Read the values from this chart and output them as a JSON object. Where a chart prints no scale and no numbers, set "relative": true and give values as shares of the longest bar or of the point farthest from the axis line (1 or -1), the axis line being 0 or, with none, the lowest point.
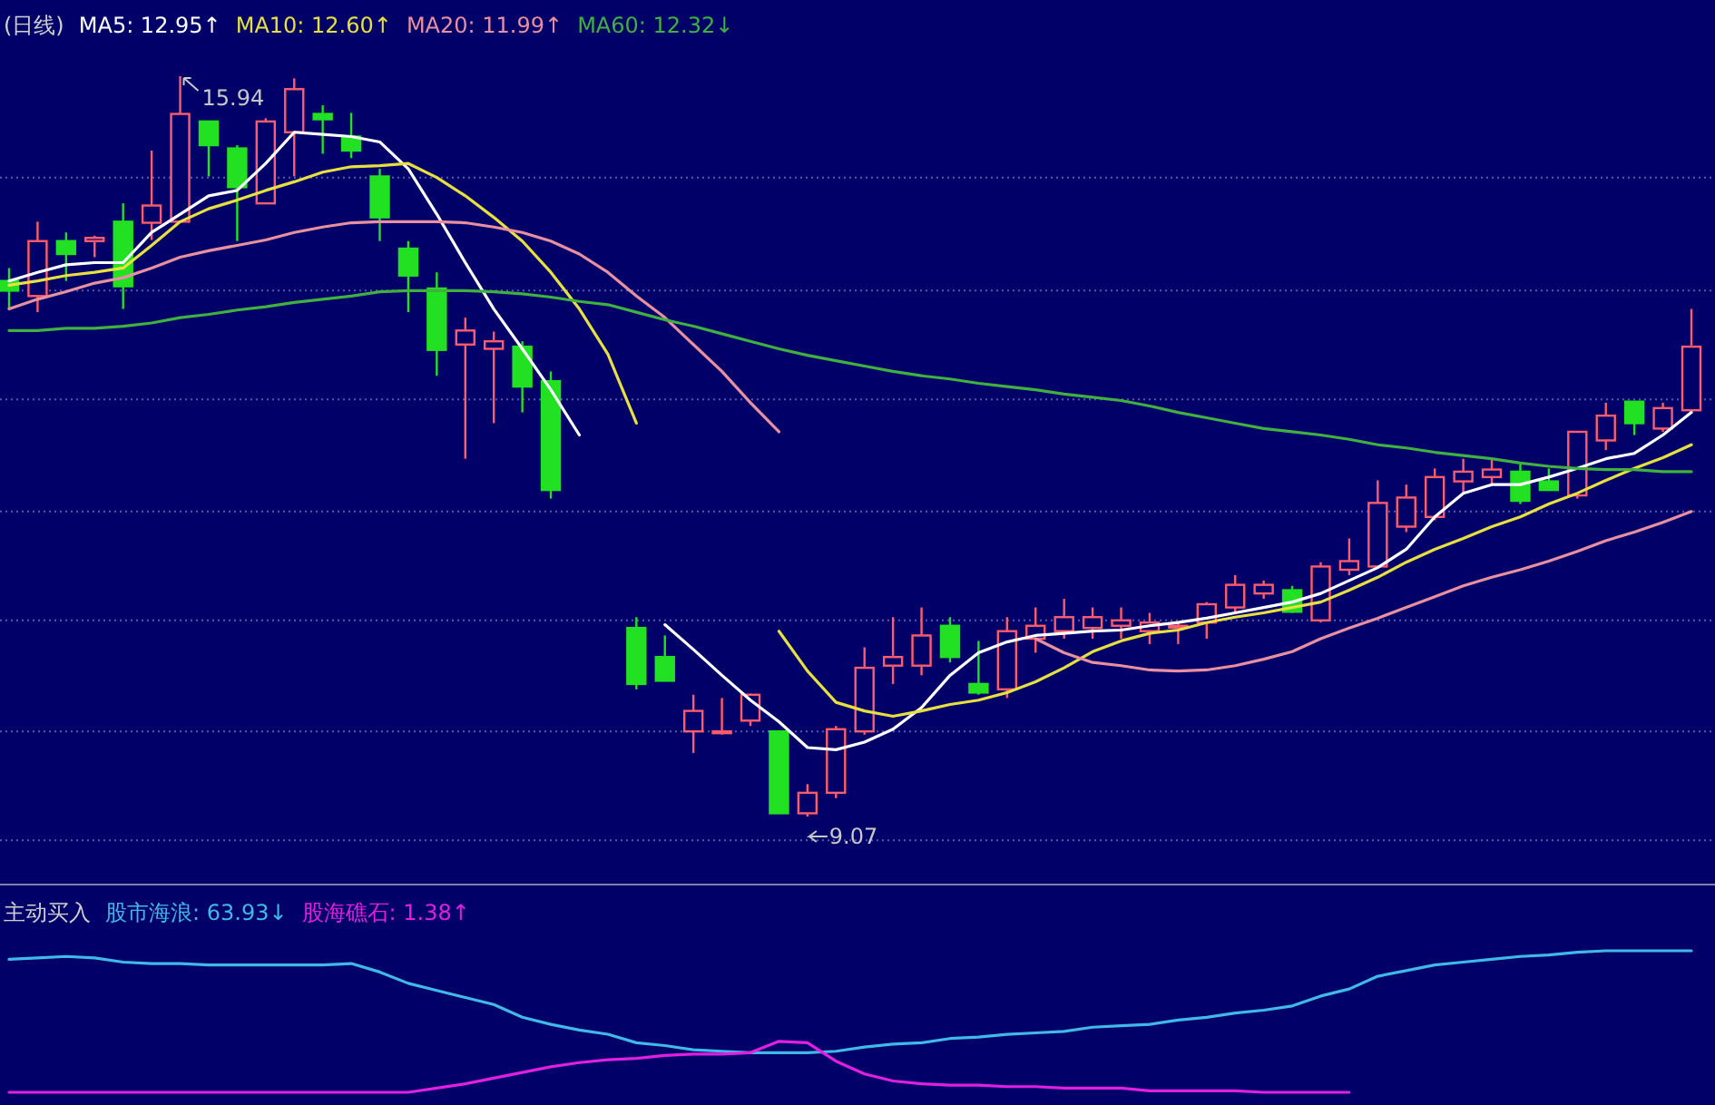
{
  "chart_data": [
    {
      "type": "candlestick",
      "title": "(日线)",
      "grid": "y",
      "legend": "top left",
      "categories": [
        null,
        null,
        null,
        null,
        null,
        null,
        null,
        null,
        null,
        null,
        null,
        null,
        null,
        null,
        null,
        null,
        null,
        null,
        null,
        null,
        null,
        null,
        null,
        null,
        null,
        null,
        null,
        null,
        null,
        null,
        null,
        null,
        null,
        null,
        null,
        null,
        null,
        null,
        null,
        null,
        null,
        null,
        null,
        null,
        null,
        null,
        null,
        null,
        null,
        null,
        null,
        null,
        null,
        null,
        null,
        null,
        null,
        null,
        null,
        null
      ],
      "yticks": [
        {
          "value": 15.0,
          "label": null
        },
        {
          "value": 13.95,
          "label": null
        },
        {
          "value": 12.94,
          "label": null
        },
        {
          "value": 11.9,
          "label": null
        },
        {
          "value": 10.89,
          "label": null
        },
        {
          "value": 9.86,
          "label": null
        },
        {
          "value": 8.85,
          "label": null
        }
      ],
      "ohlc": [
        [
          14.04,
          14.16,
          13.78,
          13.95
        ],
        [
          13.9,
          14.59,
          13.75,
          14.41
        ],
        [
          14.41,
          14.49,
          14.04,
          14.29
        ],
        [
          14.41,
          14.46,
          14.26,
          14.44
        ],
        [
          14.59,
          14.76,
          13.78,
          13.99
        ],
        [
          14.58,
          15.25,
          14.42,
          14.74
        ],
        [
          14.59,
          15.94,
          14.59,
          15.59
        ],
        [
          15.52,
          15.52,
          15.01,
          15.3
        ],
        [
          15.27,
          15.3,
          14.41,
          14.91
        ],
        [
          14.76,
          15.55,
          14.76,
          15.52
        ],
        [
          15.42,
          15.92,
          15.01,
          15.82
        ],
        [
          15.59,
          15.67,
          15.22,
          15.54
        ],
        [
          15.38,
          15.6,
          15.18,
          15.25
        ],
        [
          15.01,
          15.08,
          14.41,
          14.63
        ],
        [
          14.34,
          14.41,
          13.75,
          14.09
        ],
        [
          13.97,
          14.12,
          13.16,
          13.4
        ],
        [
          13.45,
          13.7,
          12.39,
          13.58
        ],
        [
          13.41,
          13.57,
          12.72,
          13.48
        ],
        [
          13.43,
          13.48,
          12.82,
          13.06
        ],
        [
          13.11,
          13.2,
          12.02,
          12.1
        ],
        null,
        null,
        [
          10.82,
          10.92,
          10.25,
          10.3
        ],
        [
          10.55,
          10.75,
          10.33,
          10.33
        ],
        [
          9.86,
          10.2,
          9.66,
          10.05
        ],
        [
          9.86,
          10.17,
          9.83,
          9.86
        ],
        [
          9.96,
          10.21,
          9.91,
          10.2
        ],
        [
          9.86,
          9.86,
          9.1,
          9.1
        ],
        [
          9.1,
          9.37,
          9.07,
          9.29
        ],
        [
          9.29,
          9.91,
          9.24,
          9.88
        ],
        [
          9.86,
          10.64,
          9.83,
          10.45
        ],
        [
          10.47,
          10.92,
          10.3,
          10.55
        ],
        [
          10.47,
          11.01,
          10.38,
          10.75
        ],
        [
          10.84,
          10.92,
          10.5,
          10.55
        ],
        [
          10.3,
          10.7,
          10.2,
          10.22
        ],
        [
          10.25,
          10.92,
          10.17,
          10.79
        ],
        [
          10.72,
          11.01,
          10.59,
          10.84
        ],
        [
          10.79,
          11.09,
          10.72,
          10.92
        ],
        [
          10.82,
          11.01,
          10.72,
          10.92
        ],
        [
          10.84,
          11.01,
          10.72,
          10.89
        ],
        [
          10.79,
          10.96,
          10.67,
          10.87
        ],
        [
          10.84,
          10.87,
          10.67,
          10.84
        ],
        [
          10.87,
          11.06,
          10.72,
          11.04
        ],
        [
          11.01,
          11.31,
          10.97,
          11.22
        ],
        [
          11.14,
          11.26,
          11.09,
          11.22
        ],
        [
          11.17,
          11.21,
          10.96,
          10.97
        ],
        [
          10.89,
          11.43,
          10.87,
          11.39
        ],
        [
          11.36,
          11.65,
          11.31,
          11.44
        ],
        [
          11.39,
          12.19,
          11.38,
          11.98
        ],
        [
          11.76,
          12.15,
          11.71,
          12.03
        ],
        [
          11.85,
          12.3,
          11.82,
          12.22
        ],
        [
          12.18,
          12.39,
          12.07,
          12.27
        ],
        [
          12.22,
          12.39,
          12.15,
          12.29
        ],
        [
          12.27,
          12.34,
          11.97,
          12.0
        ],
        [
          12.18,
          12.3,
          12.1,
          12.1
        ],
        [
          12.05,
          12.64,
          12.02,
          12.64
        ],
        [
          12.56,
          12.91,
          12.47,
          12.79
        ],
        [
          12.92,
          12.92,
          12.61,
          12.72
        ],
        [
          12.67,
          12.91,
          12.64,
          12.86
        ],
        [
          12.84,
          13.78,
          12.81,
          13.43
        ]
      ],
      "series": [
        {
          "name": "MA5: 12.95↑",
          "type": "line",
          "color": "#ffffff",
          "values": [
            14.04,
            14.12,
            14.19,
            14.21,
            14.21,
            14.49,
            14.66,
            14.83,
            14.88,
            15.13,
            15.42,
            15.4,
            15.38,
            15.33,
            15.08,
            14.66,
            14.21,
            13.78,
            13.41,
            13.03,
            12.61,
            null,
            null,
            10.85,
            10.62,
            10.38,
            10.15,
            9.95,
            9.71,
            9.69,
            9.76,
            9.88,
            10.08,
            10.38,
            10.59,
            10.69,
            10.75,
            10.77,
            10.79,
            10.8,
            10.84,
            10.87,
            10.91,
            10.96,
            11.01,
            11.06,
            11.14,
            11.26,
            11.38,
            11.55,
            11.85,
            12.07,
            12.15,
            12.15,
            12.22,
            12.3,
            12.39,
            12.44,
            12.61,
            12.82
          ]
        },
        {
          "name": "MA10: 12.60↑",
          "type": "line",
          "color": "#e8e040",
          "values": [
            14.0,
            14.04,
            14.09,
            14.12,
            14.16,
            14.37,
            14.59,
            14.71,
            14.79,
            14.88,
            14.96,
            15.05,
            15.1,
            15.11,
            15.13,
            15.0,
            14.83,
            14.63,
            14.41,
            14.12,
            13.78,
            13.36,
            12.72,
            null,
            null,
            null,
            null,
            10.79,
            10.42,
            10.13,
            10.05,
            10.0,
            10.05,
            10.11,
            10.15,
            10.22,
            10.32,
            10.45,
            10.6,
            10.7,
            10.77,
            10.8,
            10.87,
            10.92,
            10.96,
            11.01,
            11.06,
            11.17,
            11.29,
            11.43,
            11.55,
            11.65,
            11.76,
            11.85,
            11.97,
            12.07,
            12.19,
            12.3,
            12.4,
            12.52
          ]
        },
        {
          "name": "MA20: 11.99↑",
          "type": "line",
          "color": "#e890a0",
          "values": [
            13.78,
            13.87,
            13.94,
            14.02,
            14.07,
            14.16,
            14.26,
            14.32,
            14.37,
            14.42,
            14.49,
            14.54,
            14.58,
            14.59,
            14.59,
            14.59,
            14.58,
            14.54,
            14.49,
            14.41,
            14.29,
            14.12,
            13.9,
            13.7,
            13.45,
            13.2,
            12.91,
            12.64,
            null,
            null,
            null,
            null,
            null,
            null,
            null,
            null,
            10.72,
            10.59,
            10.5,
            10.47,
            10.43,
            10.42,
            10.43,
            10.47,
            10.53,
            10.6,
            10.72,
            10.82,
            10.91,
            11.01,
            11.11,
            11.21,
            11.29,
            11.36,
            11.44,
            11.53,
            11.63,
            11.71,
            11.8,
            11.9
          ]
        },
        {
          "name": "MA60: 12.32↓",
          "type": "line",
          "color": "#40b040",
          "values": [
            13.58,
            13.58,
            13.6,
            13.6,
            13.62,
            13.65,
            13.7,
            13.73,
            13.77,
            13.8,
            13.84,
            13.87,
            13.9,
            13.94,
            13.95,
            13.95,
            13.95,
            13.94,
            13.92,
            13.89,
            13.85,
            13.82,
            13.75,
            13.68,
            13.62,
            13.55,
            13.48,
            13.41,
            13.35,
            13.3,
            13.25,
            13.2,
            13.16,
            13.13,
            13.09,
            13.06,
            13.03,
            12.99,
            12.96,
            12.93,
            12.88,
            12.82,
            12.77,
            12.72,
            12.67,
            12.64,
            12.61,
            12.57,
            12.52,
            12.49,
            12.45,
            12.42,
            12.39,
            12.35,
            12.32,
            12.3,
            12.29,
            12.29,
            12.27,
            12.27
          ]
        }
      ],
      "annotations": [
        "15.94",
        "9.07"
      ]
    },
    {
      "type": "line",
      "title": "主动买入",
      "relative": true,
      "legend": "top left",
      "categories": [
        null,
        null,
        null,
        null,
        null,
        null,
        null,
        null,
        null,
        null,
        null,
        null,
        null,
        null,
        null,
        null,
        null,
        null,
        null,
        null,
        null,
        null,
        null,
        null,
        null,
        null,
        null,
        null,
        null,
        null,
        null,
        null,
        null,
        null,
        null,
        null,
        null,
        null,
        null,
        null,
        null,
        null,
        null,
        null,
        null,
        null,
        null,
        null,
        null,
        null,
        null,
        null,
        null,
        null,
        null,
        null,
        null,
        null,
        null,
        null
      ],
      "series": [
        {
          "name": "股市海浪: 63.93↓",
          "color": "#40b8e8",
          "values": [
            0.94,
            0.95,
            0.96,
            0.95,
            0.92,
            0.91,
            0.91,
            0.9,
            0.9,
            0.9,
            0.9,
            0.9,
            0.91,
            0.85,
            0.77,
            0.72,
            0.67,
            0.62,
            0.53,
            0.48,
            0.44,
            0.41,
            0.35,
            0.33,
            0.3,
            0.29,
            0.28,
            0.28,
            0.28,
            0.29,
            0.32,
            0.34,
            0.35,
            0.38,
            0.39,
            0.41,
            0.42,
            0.43,
            0.46,
            0.47,
            0.48,
            0.51,
            0.53,
            0.56,
            0.58,
            0.61,
            0.68,
            0.73,
            0.82,
            0.86,
            0.9,
            0.92,
            0.94,
            0.96,
            0.97,
            0.99,
            1,
            1,
            1,
            1
          ]
        },
        {
          "name": "股海礁石: 1.38↑",
          "color": "#e020e0",
          "values": [
            0,
            0,
            0,
            0,
            0,
            0,
            0,
            0,
            0,
            0,
            0,
            0,
            0,
            0,
            0,
            0.03,
            0.06,
            0.1,
            0.14,
            0.18,
            0.21,
            0.23,
            0.24,
            0.26,
            0.27,
            0.27,
            0.28,
            0.36,
            0.35,
            0.22,
            0.13,
            0.08,
            0.06,
            0.05,
            0.05,
            0.04,
            0.04,
            0.03,
            0.03,
            0.03,
            0.01,
            0.01,
            0.01,
            0.01,
            0,
            0,
            0,
            0,
            null,
            null,
            null,
            null,
            null,
            null,
            null,
            null,
            null,
            null,
            null,
            null
          ]
        }
      ]
    }
  ]
}
